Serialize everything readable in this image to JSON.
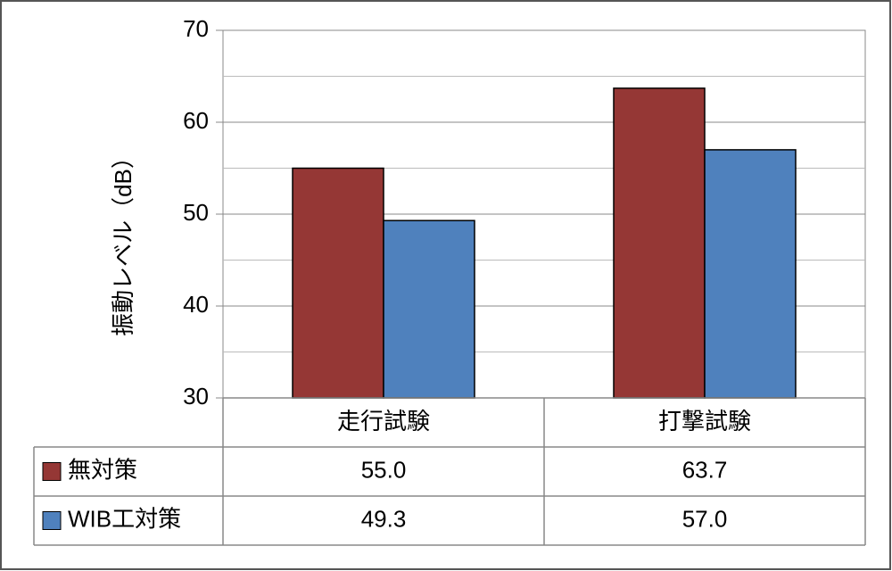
{
  "chart_data": {
    "type": "bar",
    "y_label": "振動レベル（dB）",
    "categories": [
      "走行試験",
      "打撃試験"
    ],
    "series": [
      {
        "name": "無対策",
        "color": "#953735",
        "values": [
          55.0,
          63.7
        ],
        "value_labels": [
          "55.0",
          "63.7"
        ]
      },
      {
        "name": "WIB工対策",
        "color": "#4f81bd",
        "values": [
          49.3,
          57.0
        ],
        "value_labels": [
          "49.3",
          "57.0"
        ]
      }
    ],
    "ylim": [
      30,
      70
    ],
    "yticks": [
      30,
      40,
      50,
      60,
      70
    ],
    "minor_grid": [
      35,
      45,
      55,
      65
    ],
    "grid": true,
    "data_table": true
  }
}
